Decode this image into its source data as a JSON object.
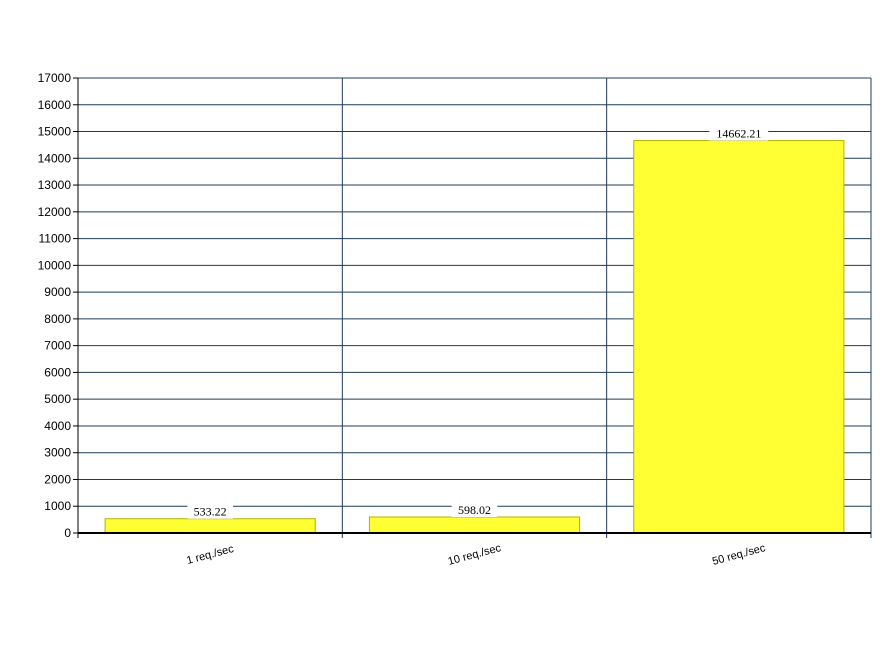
{
  "chart_data": {
    "type": "bar",
    "categories": [
      "1 req./sec",
      "10 req./sec",
      "50 req./sec"
    ],
    "values": [
      533.22,
      598.02,
      14662.21
    ],
    "value_labels": [
      "533.22",
      "598.02",
      "14662.21"
    ],
    "ylim": [
      0,
      17000
    ],
    "ytick_step": 1000,
    "grid": true,
    "legend": "none",
    "colors": {
      "bar_fill": "#ffff33",
      "bar_stroke": "#b5b000",
      "grid": "#1f3b5a",
      "axis": "#000000",
      "label_bg": "#ffffff"
    }
  }
}
